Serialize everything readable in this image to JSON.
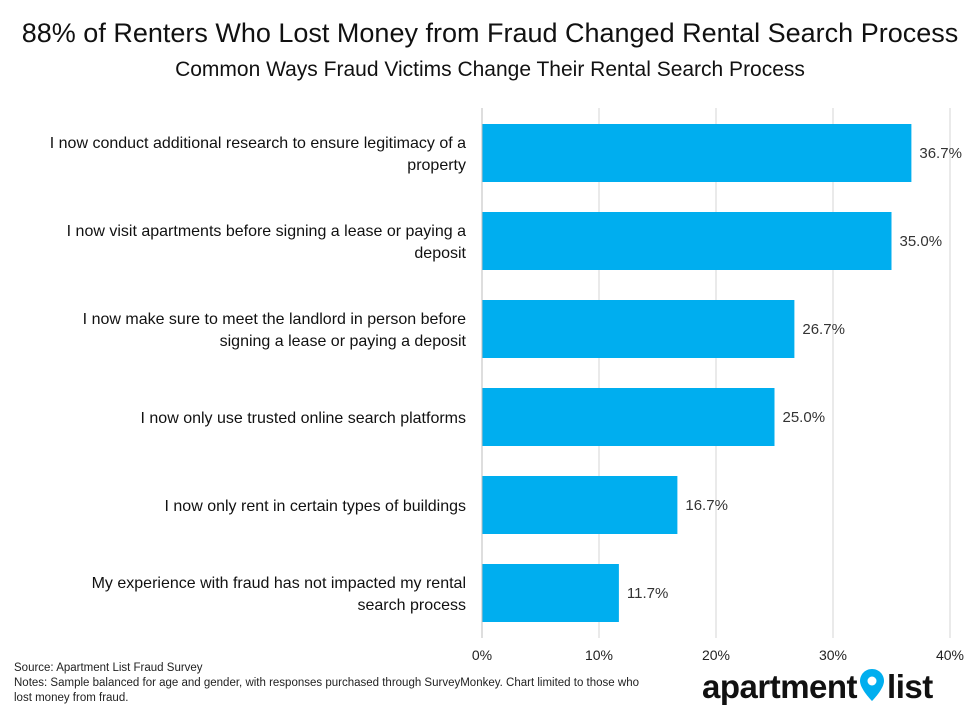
{
  "header": {
    "title": "88% of Renters Who Lost Money from Fraud Changed Rental Search Process",
    "subtitle": "Common Ways Fraud Victims Change Their Rental Search Process"
  },
  "chart_data": {
    "type": "bar",
    "orientation": "horizontal",
    "categories": [
      [
        "I now conduct additional research to ensure legitimacy of a",
        "property"
      ],
      [
        "I now visit apartments before signing a lease or paying a",
        "deposit"
      ],
      [
        "I now make sure to meet the landlord in person before",
        "signing a lease or paying a deposit"
      ],
      [
        "I now only use trusted online search platforms"
      ],
      [
        "I now only rent in certain types of buildings"
      ],
      [
        "My experience with fraud has not impacted my rental",
        "search process"
      ]
    ],
    "values": [
      36.7,
      35.0,
      26.7,
      25.0,
      16.7,
      11.7
    ],
    "value_labels": [
      "36.7%",
      "35.0%",
      "26.7%",
      "25.0%",
      "16.7%",
      "11.7%"
    ],
    "xlim": [
      0,
      40
    ],
    "x_ticks": [
      0,
      10,
      20,
      30,
      40
    ],
    "x_tick_labels": [
      "0%",
      "10%",
      "20%",
      "30%",
      "40%"
    ],
    "bar_color": "#00aeef",
    "grid": "vertical",
    "title": "88% of Renters Who Lost Money from Fraud Changed Rental Search Process",
    "subtitle": "Common Ways Fraud Victims Change Their Rental Search Process"
  },
  "footer": {
    "source": "Source: Apartment List Fraud Survey",
    "notes": "Notes: Sample balanced for age and gender, with responses purchased through SurveyMonkey. Chart limited to those who lost money from fraud."
  },
  "logo": {
    "left_text": "apartment",
    "right_text": "list",
    "pin_color": "#00aeef",
    "icon": "map-pin-icon"
  }
}
